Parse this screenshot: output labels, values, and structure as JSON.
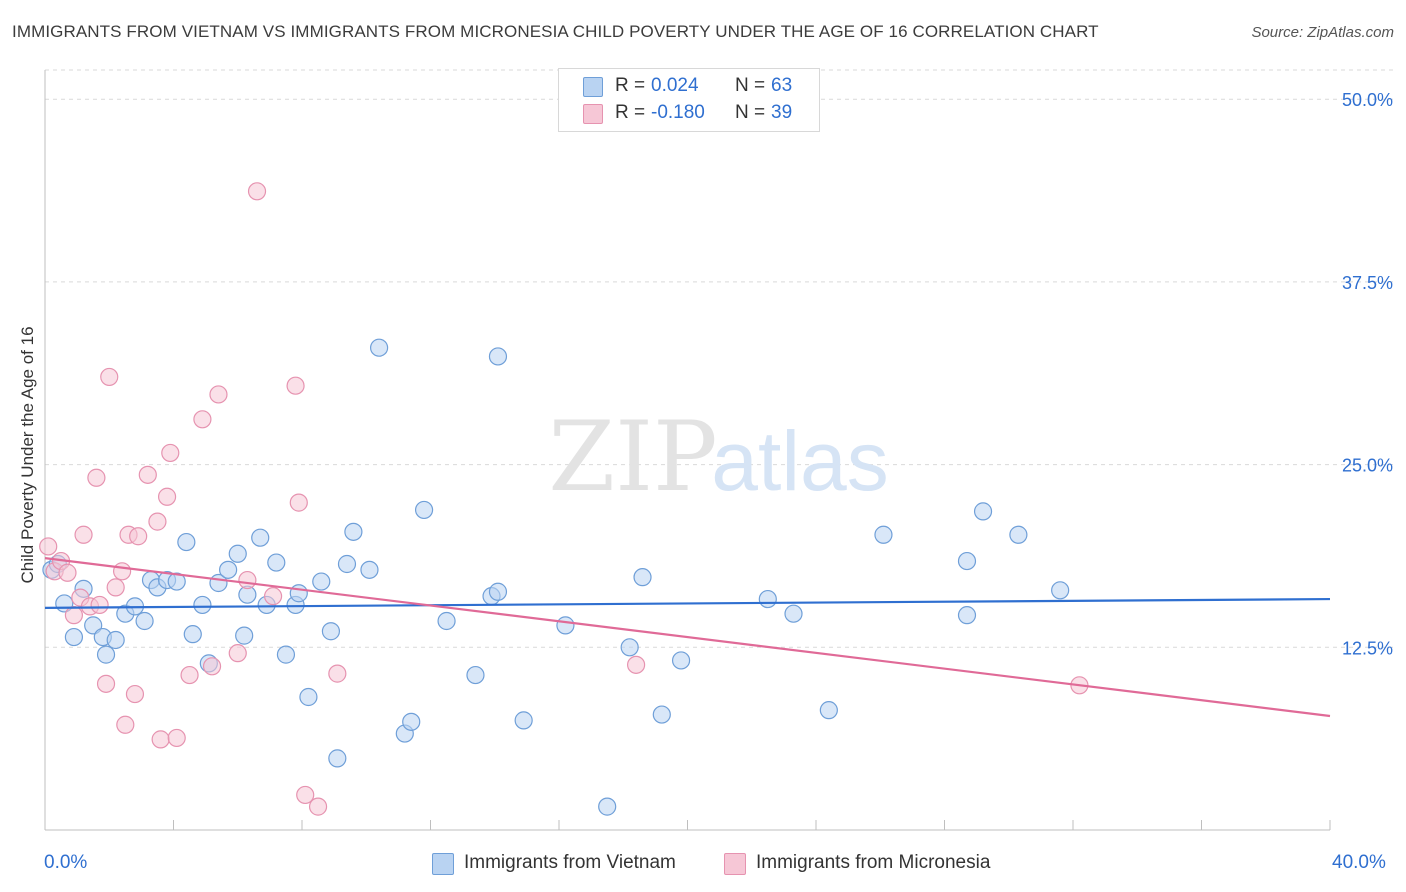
{
  "title": "IMMIGRANTS FROM VIETNAM VS IMMIGRANTS FROM MICRONESIA CHILD POVERTY UNDER THE AGE OF 16 CORRELATION CHART",
  "source": "Source: ZipAtlas.com",
  "watermark": {
    "zip": "ZIP",
    "atlas": "atlas"
  },
  "colors": {
    "vietnam_fill": "#b9d3f2",
    "vietnam_stroke": "#6f9fd8",
    "vietnam_line": "#2f6fd0",
    "micronesia_fill": "#f6c7d6",
    "micronesia_stroke": "#e693b0",
    "micronesia_line": "#e06a97",
    "grid": "#d9d9d9",
    "axis_text": "#2f6fd0"
  },
  "legend": {
    "r_label": "R =",
    "n_label": "N =",
    "rows": [
      {
        "r": "0.024",
        "n": "63"
      },
      {
        "r": "-0.180",
        "n": "39"
      }
    ]
  },
  "chart_data": {
    "type": "scatter",
    "title": "IMMIGRANTS FROM VIETNAM VS IMMIGRANTS FROM MICRONESIA CHILD POVERTY UNDER THE AGE OF 16 CORRELATION CHART",
    "xlabel": "",
    "ylabel": "Child Poverty Under the Age of 16",
    "xlim": [
      0,
      40
    ],
    "ylim": [
      0,
      52
    ],
    "x_tick_labels": [
      "0.0%",
      "40.0%"
    ],
    "y_ticks": [
      12.5,
      25.0,
      37.5,
      50.0
    ],
    "y_tick_labels": [
      "12.5%",
      "25.0%",
      "37.5%",
      "50.0%"
    ],
    "grid": "horizontal dashed",
    "legend_position": "top-center",
    "series": [
      {
        "name": "Immigrants from Vietnam",
        "trend": {
          "x": [
            0,
            40
          ],
          "y": [
            15.2,
            15.8
          ]
        },
        "points": [
          [
            0.2,
            17.8
          ],
          [
            0.4,
            18.2
          ],
          [
            0.6,
            15.5
          ],
          [
            0.9,
            13.2
          ],
          [
            1.2,
            16.5
          ],
          [
            1.5,
            14.0
          ],
          [
            1.8,
            13.2
          ],
          [
            1.9,
            12.0
          ],
          [
            2.2,
            13.0
          ],
          [
            2.5,
            14.8
          ],
          [
            2.8,
            15.3
          ],
          [
            3.1,
            14.3
          ],
          [
            3.3,
            17.1
          ],
          [
            3.5,
            16.6
          ],
          [
            3.8,
            17.1
          ],
          [
            4.1,
            17.0
          ],
          [
            4.4,
            19.7
          ],
          [
            4.6,
            13.4
          ],
          [
            4.9,
            15.4
          ],
          [
            5.1,
            11.4
          ],
          [
            5.4,
            16.9
          ],
          [
            5.7,
            17.8
          ],
          [
            6.0,
            18.9
          ],
          [
            6.2,
            13.3
          ],
          [
            6.3,
            16.1
          ],
          [
            6.7,
            20.0
          ],
          [
            6.9,
            15.4
          ],
          [
            7.2,
            18.3
          ],
          [
            7.5,
            12.0
          ],
          [
            7.8,
            15.4
          ],
          [
            7.9,
            16.2
          ],
          [
            8.2,
            9.1
          ],
          [
            8.6,
            17.0
          ],
          [
            8.9,
            13.6
          ],
          [
            9.1,
            4.9
          ],
          [
            9.4,
            18.2
          ],
          [
            9.6,
            20.4
          ],
          [
            10.1,
            17.8
          ],
          [
            10.4,
            33.0
          ],
          [
            11.2,
            6.6
          ],
          [
            11.4,
            7.4
          ],
          [
            11.8,
            21.9
          ],
          [
            12.5,
            14.3
          ],
          [
            13.4,
            10.6
          ],
          [
            13.9,
            16.0
          ],
          [
            14.1,
            16.3
          ],
          [
            14.1,
            32.4
          ],
          [
            14.9,
            7.5
          ],
          [
            16.2,
            14.0
          ],
          [
            17.5,
            1.6
          ],
          [
            18.2,
            12.5
          ],
          [
            18.6,
            17.3
          ],
          [
            19.2,
            7.9
          ],
          [
            19.8,
            11.6
          ],
          [
            22.5,
            15.8
          ],
          [
            23.3,
            14.8
          ],
          [
            24.4,
            8.2
          ],
          [
            26.1,
            20.2
          ],
          [
            28.7,
            18.4
          ],
          [
            28.7,
            14.7
          ],
          [
            29.2,
            21.8
          ],
          [
            30.3,
            20.2
          ],
          [
            31.6,
            16.4
          ]
        ]
      },
      {
        "name": "Immigrants from Micronesia",
        "trend": {
          "x": [
            0,
            40
          ],
          "y": [
            18.6,
            7.8
          ]
        },
        "points": [
          [
            0.1,
            19.4
          ],
          [
            0.3,
            17.7
          ],
          [
            0.5,
            18.4
          ],
          [
            0.7,
            17.6
          ],
          [
            0.9,
            14.7
          ],
          [
            1.1,
            15.9
          ],
          [
            1.2,
            20.2
          ],
          [
            1.4,
            15.3
          ],
          [
            1.6,
            24.1
          ],
          [
            1.7,
            15.4
          ],
          [
            1.9,
            10.0
          ],
          [
            2.0,
            31.0
          ],
          [
            2.2,
            16.6
          ],
          [
            2.4,
            17.7
          ],
          [
            2.5,
            7.2
          ],
          [
            2.6,
            20.2
          ],
          [
            2.8,
            9.3
          ],
          [
            2.9,
            20.1
          ],
          [
            3.2,
            24.3
          ],
          [
            3.5,
            21.1
          ],
          [
            3.6,
            6.2
          ],
          [
            3.8,
            22.8
          ],
          [
            3.9,
            25.8
          ],
          [
            4.1,
            6.3
          ],
          [
            4.5,
            10.6
          ],
          [
            4.9,
            28.1
          ],
          [
            5.2,
            11.2
          ],
          [
            5.4,
            29.8
          ],
          [
            6.0,
            12.1
          ],
          [
            6.3,
            17.1
          ],
          [
            6.6,
            43.7
          ],
          [
            7.1,
            16.0
          ],
          [
            7.8,
            30.4
          ],
          [
            7.9,
            22.4
          ],
          [
            8.1,
            2.4
          ],
          [
            8.5,
            1.6
          ],
          [
            9.1,
            10.7
          ],
          [
            18.4,
            11.3
          ],
          [
            32.2,
            9.9
          ]
        ]
      }
    ]
  }
}
